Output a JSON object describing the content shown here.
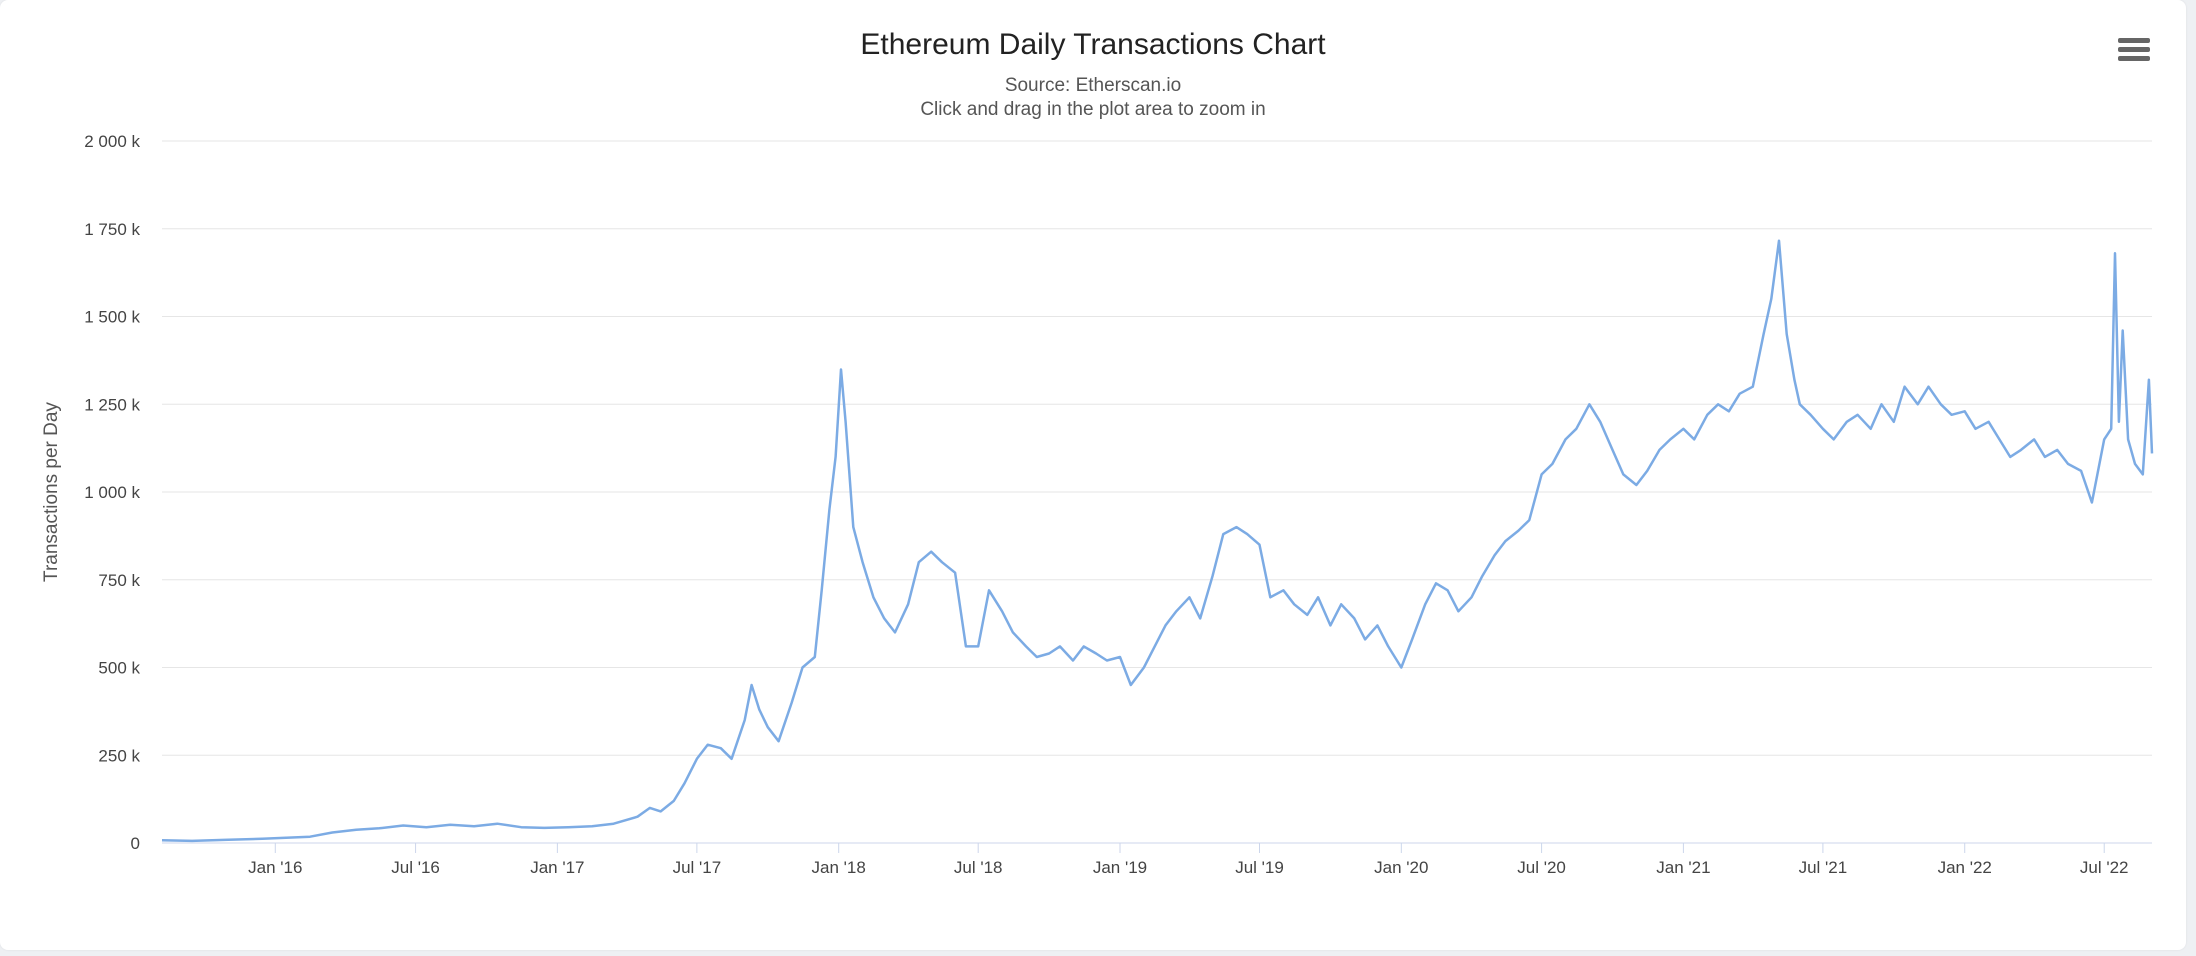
{
  "header": {
    "title": "Ethereum Daily Transactions Chart",
    "subtitle_source": "Source: Etherscan.io",
    "subtitle_hint": "Click and drag in the plot area to zoom in",
    "menu_icon": "hamburger-menu-icon"
  },
  "colors": {
    "series": "#7cabe4",
    "grid": "#e6e6e6",
    "axis": "#ccd6eb"
  },
  "chart_data": {
    "type": "line",
    "title": "Ethereum Daily Transactions Chart",
    "subtitle": "Source: Etherscan.io",
    "xlabel": "",
    "ylabel": "Transactions per Day",
    "xlim": [
      "2015-08-07",
      "2022-09-01"
    ],
    "ylim": [
      0,
      2000000
    ],
    "yticks": [
      {
        "value": 0,
        "label": "0"
      },
      {
        "value": 250000,
        "label": "250 k"
      },
      {
        "value": 500000,
        "label": "500 k"
      },
      {
        "value": 750000,
        "label": "750 k"
      },
      {
        "value": 1000000,
        "label": "1 000 k"
      },
      {
        "value": 1250000,
        "label": "1 250 k"
      },
      {
        "value": 1500000,
        "label": "1 500 k"
      },
      {
        "value": 1750000,
        "label": "1 750 k"
      },
      {
        "value": 2000000,
        "label": "2 000 k"
      }
    ],
    "xticks": [
      {
        "value": "2016-01-01",
        "label": "Jan '16"
      },
      {
        "value": "2016-07-01",
        "label": "Jul '16"
      },
      {
        "value": "2017-01-01",
        "label": "Jan '17"
      },
      {
        "value": "2017-07-01",
        "label": "Jul '17"
      },
      {
        "value": "2018-01-01",
        "label": "Jan '18"
      },
      {
        "value": "2018-07-01",
        "label": "Jul '18"
      },
      {
        "value": "2019-01-01",
        "label": "Jan '19"
      },
      {
        "value": "2019-07-01",
        "label": "Jul '19"
      },
      {
        "value": "2020-01-01",
        "label": "Jan '20"
      },
      {
        "value": "2020-07-01",
        "label": "Jul '20"
      },
      {
        "value": "2021-01-01",
        "label": "Jan '21"
      },
      {
        "value": "2021-07-01",
        "label": "Jul '21"
      },
      {
        "value": "2022-01-01",
        "label": "Jan '22"
      },
      {
        "value": "2022-07-01",
        "label": "Jul '22"
      }
    ],
    "grid": true,
    "legend": false,
    "series": [
      {
        "name": "",
        "points": [
          [
            "2015-08-07",
            8000
          ],
          [
            "2015-09-15",
            6000
          ],
          [
            "2015-11-01",
            9000
          ],
          [
            "2015-12-15",
            12000
          ],
          [
            "2016-01-15",
            15000
          ],
          [
            "2016-02-15",
            18000
          ],
          [
            "2016-03-15",
            30000
          ],
          [
            "2016-04-15",
            38000
          ],
          [
            "2016-05-15",
            42000
          ],
          [
            "2016-06-15",
            50000
          ],
          [
            "2016-07-15",
            45000
          ],
          [
            "2016-08-15",
            52000
          ],
          [
            "2016-09-15",
            48000
          ],
          [
            "2016-10-15",
            55000
          ],
          [
            "2016-11-15",
            45000
          ],
          [
            "2016-12-15",
            43000
          ],
          [
            "2017-01-15",
            45000
          ],
          [
            "2017-02-15",
            48000
          ],
          [
            "2017-03-15",
            55000
          ],
          [
            "2017-04-15",
            75000
          ],
          [
            "2017-05-01",
            100000
          ],
          [
            "2017-05-15",
            90000
          ],
          [
            "2017-06-01",
            120000
          ],
          [
            "2017-06-15",
            170000
          ],
          [
            "2017-07-01",
            240000
          ],
          [
            "2017-07-15",
            280000
          ],
          [
            "2017-08-01",
            270000
          ],
          [
            "2017-08-15",
            240000
          ],
          [
            "2017-09-01",
            350000
          ],
          [
            "2017-09-10",
            450000
          ],
          [
            "2017-09-20",
            380000
          ],
          [
            "2017-10-01",
            330000
          ],
          [
            "2017-10-15",
            290000
          ],
          [
            "2017-11-01",
            400000
          ],
          [
            "2017-11-15",
            500000
          ],
          [
            "2017-12-01",
            530000
          ],
          [
            "2017-12-10",
            720000
          ],
          [
            "2017-12-20",
            950000
          ],
          [
            "2017-12-28",
            1100000
          ],
          [
            "2018-01-04",
            1349000
          ],
          [
            "2018-01-10",
            1200000
          ],
          [
            "2018-01-20",
            900000
          ],
          [
            "2018-02-01",
            800000
          ],
          [
            "2018-02-15",
            700000
          ],
          [
            "2018-03-01",
            640000
          ],
          [
            "2018-03-15",
            600000
          ],
          [
            "2018-04-01",
            680000
          ],
          [
            "2018-04-15",
            800000
          ],
          [
            "2018-05-01",
            830000
          ],
          [
            "2018-05-15",
            800000
          ],
          [
            "2018-06-01",
            770000
          ],
          [
            "2018-06-15",
            560000
          ],
          [
            "2018-07-01",
            560000
          ],
          [
            "2018-07-15",
            720000
          ],
          [
            "2018-08-01",
            660000
          ],
          [
            "2018-08-15",
            600000
          ],
          [
            "2018-09-01",
            560000
          ],
          [
            "2018-09-15",
            530000
          ],
          [
            "2018-10-01",
            540000
          ],
          [
            "2018-10-15",
            560000
          ],
          [
            "2018-11-01",
            520000
          ],
          [
            "2018-11-15",
            560000
          ],
          [
            "2018-12-01",
            540000
          ],
          [
            "2018-12-15",
            520000
          ],
          [
            "2019-01-01",
            530000
          ],
          [
            "2019-01-15",
            450000
          ],
          [
            "2019-02-01",
            500000
          ],
          [
            "2019-02-15",
            560000
          ],
          [
            "2019-03-01",
            620000
          ],
          [
            "2019-03-15",
            660000
          ],
          [
            "2019-04-01",
            700000
          ],
          [
            "2019-04-15",
            640000
          ],
          [
            "2019-05-01",
            760000
          ],
          [
            "2019-05-15",
            880000
          ],
          [
            "2019-06-01",
            900000
          ],
          [
            "2019-06-15",
            880000
          ],
          [
            "2019-07-01",
            850000
          ],
          [
            "2019-07-15",
            700000
          ],
          [
            "2019-08-01",
            720000
          ],
          [
            "2019-08-15",
            680000
          ],
          [
            "2019-09-01",
            650000
          ],
          [
            "2019-09-15",
            700000
          ],
          [
            "2019-10-01",
            620000
          ],
          [
            "2019-10-15",
            680000
          ],
          [
            "2019-11-01",
            640000
          ],
          [
            "2019-11-15",
            580000
          ],
          [
            "2019-12-01",
            620000
          ],
          [
            "2019-12-15",
            560000
          ],
          [
            "2020-01-01",
            500000
          ],
          [
            "2020-01-15",
            580000
          ],
          [
            "2020-02-01",
            680000
          ],
          [
            "2020-02-15",
            740000
          ],
          [
            "2020-03-01",
            720000
          ],
          [
            "2020-03-15",
            660000
          ],
          [
            "2020-04-01",
            700000
          ],
          [
            "2020-04-15",
            760000
          ],
          [
            "2020-05-01",
            820000
          ],
          [
            "2020-05-15",
            860000
          ],
          [
            "2020-06-01",
            890000
          ],
          [
            "2020-06-15",
            920000
          ],
          [
            "2020-07-01",
            1050000
          ],
          [
            "2020-07-15",
            1080000
          ],
          [
            "2020-08-01",
            1150000
          ],
          [
            "2020-08-15",
            1180000
          ],
          [
            "2020-09-01",
            1250000
          ],
          [
            "2020-09-15",
            1200000
          ],
          [
            "2020-10-01",
            1120000
          ],
          [
            "2020-10-15",
            1050000
          ],
          [
            "2020-11-01",
            1020000
          ],
          [
            "2020-11-15",
            1060000
          ],
          [
            "2020-12-01",
            1120000
          ],
          [
            "2020-12-15",
            1150000
          ],
          [
            "2021-01-01",
            1180000
          ],
          [
            "2021-01-15",
            1150000
          ],
          [
            "2021-02-01",
            1220000
          ],
          [
            "2021-02-15",
            1250000
          ],
          [
            "2021-03-01",
            1230000
          ],
          [
            "2021-03-15",
            1280000
          ],
          [
            "2021-04-01",
            1300000
          ],
          [
            "2021-04-15",
            1450000
          ],
          [
            "2021-04-25",
            1550000
          ],
          [
            "2021-05-05",
            1716000
          ],
          [
            "2021-05-15",
            1450000
          ],
          [
            "2021-05-25",
            1320000
          ],
          [
            "2021-06-01",
            1250000
          ],
          [
            "2021-06-15",
            1220000
          ],
          [
            "2021-07-01",
            1180000
          ],
          [
            "2021-07-15",
            1150000
          ],
          [
            "2021-08-01",
            1200000
          ],
          [
            "2021-08-15",
            1220000
          ],
          [
            "2021-09-01",
            1180000
          ],
          [
            "2021-09-15",
            1250000
          ],
          [
            "2021-10-01",
            1200000
          ],
          [
            "2021-10-15",
            1300000
          ],
          [
            "2021-11-01",
            1250000
          ],
          [
            "2021-11-15",
            1300000
          ],
          [
            "2021-12-01",
            1250000
          ],
          [
            "2021-12-15",
            1220000
          ],
          [
            "2022-01-01",
            1230000
          ],
          [
            "2022-01-15",
            1180000
          ],
          [
            "2022-02-01",
            1200000
          ],
          [
            "2022-02-15",
            1150000
          ],
          [
            "2022-03-01",
            1100000
          ],
          [
            "2022-03-15",
            1120000
          ],
          [
            "2022-04-01",
            1150000
          ],
          [
            "2022-04-15",
            1100000
          ],
          [
            "2022-05-01",
            1120000
          ],
          [
            "2022-05-15",
            1080000
          ],
          [
            "2022-06-01",
            1060000
          ],
          [
            "2022-06-15",
            970000
          ],
          [
            "2022-07-01",
            1150000
          ],
          [
            "2022-07-10",
            1180000
          ],
          [
            "2022-07-15",
            1680000
          ],
          [
            "2022-07-20",
            1200000
          ],
          [
            "2022-07-25",
            1460000
          ],
          [
            "2022-08-01",
            1150000
          ],
          [
            "2022-08-10",
            1080000
          ],
          [
            "2022-08-20",
            1050000
          ],
          [
            "2022-08-28",
            1320000
          ],
          [
            "2022-09-01",
            1110000
          ]
        ]
      }
    ]
  }
}
